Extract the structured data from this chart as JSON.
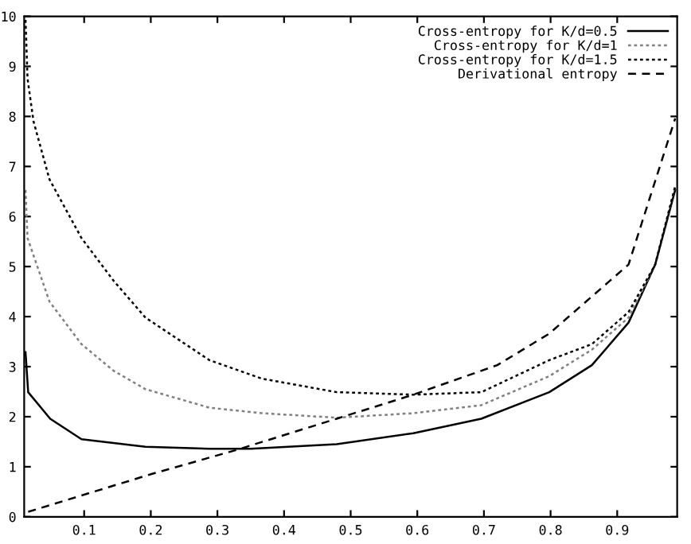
{
  "chart_data": {
    "type": "line",
    "xlim": [
      0.01,
      0.99
    ],
    "ylim": [
      0,
      10
    ],
    "xticks": [
      0.1,
      0.2,
      0.3,
      0.4,
      0.5,
      0.6,
      0.7,
      0.8,
      0.9
    ],
    "yticks": [
      0,
      1,
      2,
      3,
      4,
      5,
      6,
      7,
      8,
      9,
      10
    ],
    "grid": false,
    "legend": "top right",
    "marker": "none",
    "series": [
      {
        "name": "Cross-entropy for K/d=0.5",
        "color": "#000000",
        "line_style": "solid",
        "x": [
          0.012,
          0.016,
          0.049,
          0.096,
          0.192,
          0.288,
          0.35,
          0.479,
          0.594,
          0.696,
          0.798,
          0.862,
          0.917,
          0.957,
          0.987
        ],
        "values": [
          3.29,
          2.49,
          1.96,
          1.55,
          1.4,
          1.36,
          1.36,
          1.45,
          1.67,
          1.96,
          2.49,
          3.03,
          3.88,
          5.04,
          6.53
        ]
      },
      {
        "name": "Cross-entropy for K/d=1",
        "color": "#808080",
        "line_style": "dotted",
        "x": [
          0.012,
          0.015,
          0.048,
          0.096,
          0.144,
          0.192,
          0.288,
          0.367,
          0.479,
          0.594,
          0.696,
          0.798,
          0.862,
          0.917,
          0.957,
          0.987
        ],
        "values": [
          6.53,
          5.57,
          4.3,
          3.45,
          2.92,
          2.55,
          2.18,
          2.07,
          1.98,
          2.07,
          2.23,
          2.81,
          3.34,
          3.98,
          5.04,
          6.6
        ]
      },
      {
        "name": "Cross-entropy for K/d=1.5",
        "color": "#000000",
        "line_style": "dotted",
        "x": [
          0.012,
          0.015,
          0.024,
          0.048,
          0.096,
          0.144,
          0.192,
          0.288,
          0.367,
          0.479,
          0.594,
          0.696,
          0.798,
          0.862,
          0.917,
          0.957,
          0.987
        ],
        "values": [
          9.93,
          8.76,
          7.9,
          6.74,
          5.57,
          4.72,
          3.98,
          3.13,
          2.76,
          2.49,
          2.44,
          2.49,
          3.13,
          3.45,
          4.09,
          5.04,
          6.6
        ]
      },
      {
        "name": "Derivational entropy",
        "color": "#000000",
        "line_style": "dashed",
        "x": [
          0.016,
          0.2,
          0.327,
          0.479,
          0.594,
          0.72,
          0.798,
          0.917,
          0.987
        ],
        "values": [
          0.1,
          0.85,
          1.33,
          1.96,
          2.44,
          3.03,
          3.66,
          5.04,
          7.96
        ]
      }
    ]
  }
}
